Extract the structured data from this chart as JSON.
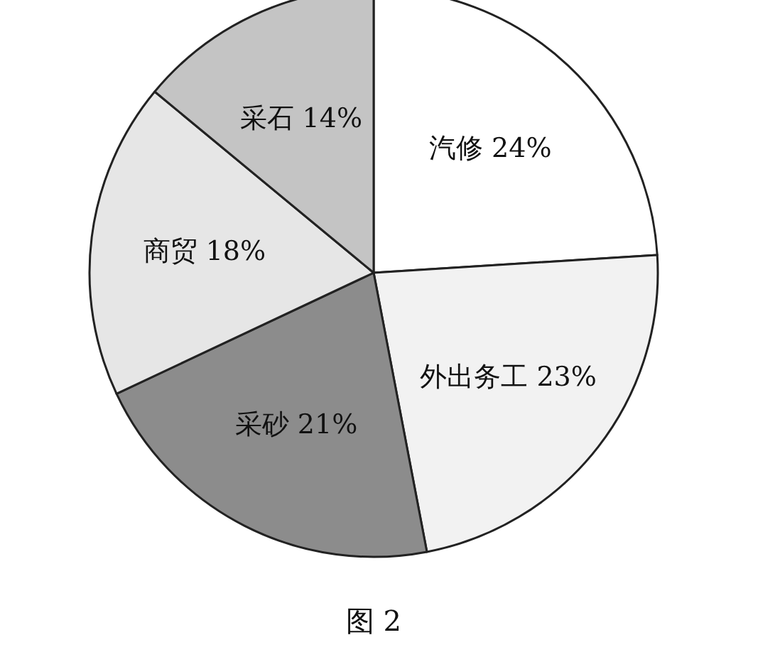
{
  "chart_data": {
    "type": "pie",
    "title": "图 2",
    "categories": [
      "汽修",
      "外出务工",
      "采砂",
      "商贸",
      "采石"
    ],
    "values": [
      24,
      23,
      21,
      18,
      14
    ],
    "colors": [
      "#ffffff",
      "#f2f2f2",
      "#8c8c8c",
      "#e6e6e6",
      "#c4c4c4"
    ],
    "value_labels": [
      "24%",
      "23%",
      "21%",
      "18%",
      "14%"
    ]
  }
}
